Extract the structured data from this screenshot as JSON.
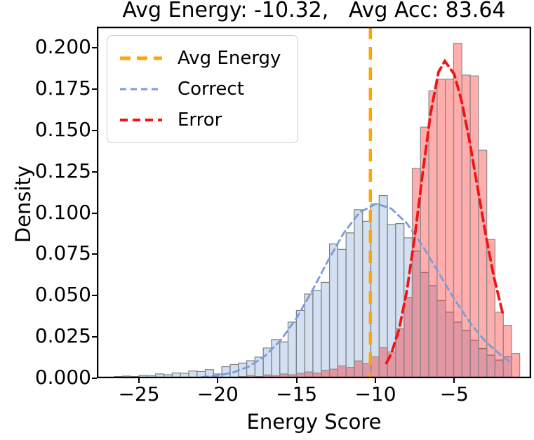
{
  "title": "Avg Energy: -10.32,   Avg Acc: 83.64",
  "chart_data": {
    "type": "histogram",
    "title": "Avg Energy: -10.32,   Avg Acc: 83.64",
    "xlabel": "Energy Score",
    "ylabel": "Density",
    "avg_energy": -10.32,
    "avg_acc": 83.64,
    "xlim": [
      -27.67,
      -0.12
    ],
    "ylim": [
      0,
      0.2128
    ],
    "x_ticks": [
      -25,
      -20,
      -15,
      -10,
      -5
    ],
    "y_ticks": [
      0.0,
      0.025,
      0.05,
      0.075,
      0.1,
      0.125,
      0.15,
      0.175,
      0.2
    ],
    "grid": false,
    "bin_width": 0.525,
    "vline": {
      "label": "Avg Energy",
      "x": -10.32
    },
    "legend": {
      "position": "upper left",
      "entries": [
        "Avg Energy",
        "Correct",
        "Error"
      ]
    },
    "series": [
      {
        "name": "Correct",
        "bin_centers": [
          -26.3,
          -25.78,
          -25.25,
          -24.73,
          -24.2,
          -23.68,
          -23.15,
          -22.63,
          -22.1,
          -21.58,
          -21.05,
          -20.53,
          -20.0,
          -19.48,
          -18.95,
          -18.43,
          -17.9,
          -17.38,
          -16.85,
          -16.33,
          -15.8,
          -15.28,
          -14.75,
          -14.23,
          -13.7,
          -13.18,
          -12.65,
          -12.13,
          -11.6,
          -11.08,
          -10.55,
          -10.03,
          -9.5,
          -8.98,
          -8.45,
          -7.93,
          -7.4,
          -6.88,
          -6.35,
          -5.83,
          -5.3,
          -4.78,
          -4.25,
          -3.73,
          -3.2,
          -2.68,
          -2.15,
          -1.63
        ],
        "densities": [
          0.001,
          0.0013,
          0.001,
          0.0018,
          0.0015,
          0.0026,
          0.0021,
          0.0032,
          0.003,
          0.0044,
          0.0041,
          0.0052,
          0.0026,
          0.007,
          0.0083,
          0.0092,
          0.0106,
          0.0128,
          0.0183,
          0.0234,
          0.022,
          0.034,
          0.041,
          0.051,
          0.0532,
          0.058,
          0.0813,
          0.078,
          0.088,
          0.102,
          0.095,
          0.1055,
          0.1106,
          0.093,
          0.0936,
          0.085,
          0.077,
          0.064,
          0.056,
          0.047,
          0.04,
          0.034,
          0.029,
          0.023,
          0.018,
          0.014,
          0.011,
          0.013
        ],
        "kde_x": [
          -21,
          -20,
          -19,
          -18,
          -17,
          -16,
          -15,
          -14,
          -13,
          -12,
          -11,
          -10,
          -9.9,
          -9,
          -8,
          -7,
          -6,
          -5,
          -4,
          -3,
          -2,
          -1.5
        ],
        "kde_y": [
          0.0007,
          0.0016,
          0.0036,
          0.0072,
          0.0135,
          0.0231,
          0.0365,
          0.0531,
          0.0713,
          0.0881,
          0.1004,
          0.1054,
          0.1055,
          0.1027,
          0.0937,
          0.08,
          0.064,
          0.0479,
          0.0336,
          0.022,
          0.0136,
          0.0104
        ]
      },
      {
        "name": "Error",
        "bin_centers": [
          -18.43,
          -17.9,
          -17.38,
          -16.85,
          -16.33,
          -15.8,
          -15.28,
          -14.75,
          -14.23,
          -13.7,
          -13.18,
          -12.65,
          -12.13,
          -11.6,
          -11.08,
          -10.55,
          -10.03,
          -9.5,
          -8.98,
          -8.45,
          -7.93,
          -7.4,
          -6.88,
          -6.35,
          -5.83,
          -5.3,
          -4.78,
          -4.25,
          -3.73,
          -3.2,
          -2.68,
          -2.15,
          -1.63,
          -1.11
        ],
        "densities": [
          0.001,
          0.0015,
          0.001,
          0.002,
          0.0015,
          0.0026,
          0.0021,
          0.003,
          0.0038,
          0.0032,
          0.0048,
          0.0055,
          0.0075,
          0.0065,
          0.0105,
          0.009,
          0.013,
          0.0185,
          0.016,
          0.03,
          0.049,
          0.127,
          0.152,
          0.174,
          0.181,
          0.181,
          0.2027,
          0.1835,
          0.183,
          0.138,
          0.084,
          0.04,
          0.032,
          0.015
        ],
        "kde_x": [
          -9.3,
          -9,
          -8.5,
          -8,
          -7.5,
          -7,
          -6.5,
          -6,
          -5.6,
          -5,
          -4.5,
          -4,
          -3.5,
          -3,
          -2.5,
          -1.9
        ],
        "kde_y": [
          0.0092,
          0.0147,
          0.0296,
          0.0534,
          0.0861,
          0.1242,
          0.1604,
          0.1853,
          0.192,
          0.184,
          0.1665,
          0.142,
          0.1142,
          0.0866,
          0.0619,
          0.0383
        ]
      }
    ],
    "legend_entries": [
      {
        "label": "Avg Energy",
        "color": "#FFA500",
        "line_width": 5,
        "dash": "15,9"
      },
      {
        "label": "Correct",
        "color": "#7B9CD9",
        "line_width": 3,
        "dash": "9,6"
      },
      {
        "label": "Error",
        "color": "#F41412",
        "line_width": 4,
        "dash": "11,7"
      }
    ]
  },
  "colors": {
    "correct_fill": "#AEC7E8",
    "correct_fill_opacity": 0.55,
    "correct_edge": "#7F7F7F",
    "correct_kde": "#7B9CD9",
    "error_fill": "#FF0000",
    "error_fill_opacity": 0.32,
    "error_edge": "#8C8C8C",
    "error_kde": "#F41412",
    "avg_line": "#FFA500",
    "axis": "#000000",
    "legend_border": "#CCCCCC"
  }
}
